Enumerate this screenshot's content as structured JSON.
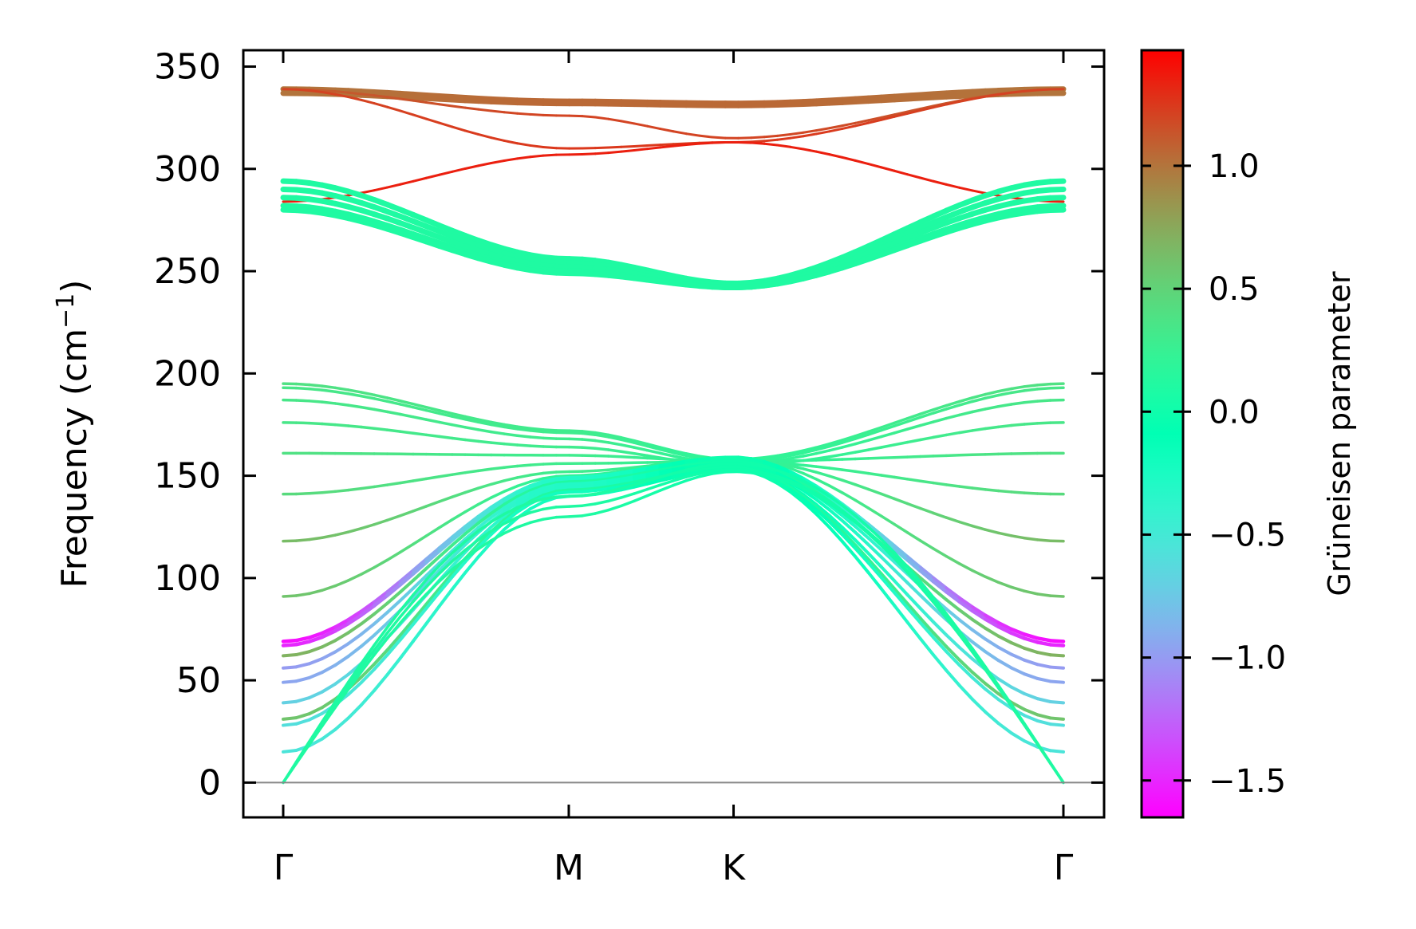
{
  "chart_data": {
    "type": "line",
    "title": "",
    "xlabel": "",
    "ylabel_main": "Frequency (cm",
    "ylabel_sup": "−1",
    "ylabel_close": ")",
    "ylim": [
      -17,
      358
    ],
    "yticks": [
      0,
      50,
      100,
      150,
      200,
      250,
      300,
      350
    ],
    "ytick_labels": [
      "0",
      "50",
      "100",
      "150",
      "200",
      "250",
      "300",
      "350"
    ],
    "k_path": [
      {
        "label": "Γ",
        "x": 0.0
      },
      {
        "label": "M",
        "x": 1.0
      },
      {
        "label": "K",
        "x": 1.577
      },
      {
        "label": "Γ",
        "x": 2.732
      }
    ],
    "zero_line": true,
    "colorbar": {
      "label": "Grüneisen parameter",
      "range": [
        -1.65,
        1.47
      ],
      "ticks": [
        1.0,
        0.5,
        0.0,
        -0.5,
        -1.0,
        -1.5
      ],
      "tick_labels": [
        "1.0",
        "0.5",
        "0.0",
        "−0.5",
        "−1.0",
        "−1.5"
      ],
      "colormap": "rainbow"
    },
    "series": [
      {
        "name": "optical-top-1",
        "freq": [
          339,
          333,
          332,
          339
        ],
        "gruneisen": [
          1.0,
          1.05,
          1.05,
          1.0
        ],
        "width": 7
      },
      {
        "name": "optical-top-2",
        "freq": [
          337,
          332,
          331,
          337
        ],
        "gruneisen": [
          1.0,
          1.05,
          1.05,
          1.0
        ],
        "width": 7
      },
      {
        "name": "optical-top-3",
        "freq": [
          339,
          326,
          315,
          339
        ],
        "gruneisen": [
          1.1,
          1.2,
          1.2,
          1.1
        ],
        "width": 3
      },
      {
        "name": "optical-top-4",
        "freq": [
          339,
          310,
          313,
          339
        ],
        "gruneisen": [
          1.2,
          1.25,
          1.25,
          1.2
        ],
        "width": 3
      },
      {
        "name": "optical-top-5",
        "freq": [
          284,
          307,
          313,
          284
        ],
        "gruneisen": [
          1.35,
          1.35,
          1.35,
          1.35
        ],
        "width": 3
      },
      {
        "name": "optical-mid-1",
        "freq": [
          294,
          256,
          244,
          294
        ],
        "gruneisen": [
          0.1,
          0.1,
          0.1,
          0.1
        ],
        "width": 7
      },
      {
        "name": "optical-mid-2",
        "freq": [
          290,
          254,
          243,
          290
        ],
        "gruneisen": [
          0.1,
          0.1,
          0.1,
          0.1
        ],
        "width": 7
      },
      {
        "name": "optical-mid-3",
        "freq": [
          286,
          252,
          243,
          286
        ],
        "gruneisen": [
          0.1,
          0.1,
          0.1,
          0.1
        ],
        "width": 7
      },
      {
        "name": "optical-mid-4",
        "freq": [
          282,
          250,
          242,
          282
        ],
        "gruneisen": [
          0.1,
          0.1,
          0.1,
          0.1
        ],
        "width": 7
      },
      {
        "name": "optical-mid-5",
        "freq": [
          280,
          249,
          242,
          280
        ],
        "gruneisen": [
          0.1,
          0.1,
          0.1,
          0.1
        ],
        "width": 7
      },
      {
        "name": "band-195",
        "freq": [
          195,
          172,
          158,
          195
        ],
        "gruneisen": [
          0.4,
          0.3,
          0.2,
          0.4
        ],
        "width": 3.5
      },
      {
        "name": "band-193",
        "freq": [
          193,
          171,
          157,
          193
        ],
        "gruneisen": [
          0.35,
          0.3,
          0.2,
          0.35
        ],
        "width": 3.5
      },
      {
        "name": "band-187",
        "freq": [
          187,
          168,
          156,
          187
        ],
        "gruneisen": [
          0.35,
          0.3,
          0.2,
          0.35
        ],
        "width": 3.5
      },
      {
        "name": "band-176",
        "freq": [
          176,
          164,
          155,
          176
        ],
        "gruneisen": [
          0.35,
          0.3,
          0.2,
          0.35
        ],
        "width": 3.5
      },
      {
        "name": "band-161",
        "freq": [
          161,
          160,
          157,
          161
        ],
        "gruneisen": [
          0.4,
          0.3,
          0.2,
          0.4
        ],
        "width": 3.5
      },
      {
        "name": "band-141",
        "freq": [
          141,
          156,
          157,
          141
        ],
        "gruneisen": [
          0.45,
          0.3,
          0.2,
          0.45
        ],
        "width": 3.5
      },
      {
        "name": "band-118",
        "freq": [
          118,
          152,
          158,
          118
        ],
        "gruneisen": [
          0.65,
          0.3,
          0.2,
          0.65
        ],
        "width": 3.5
      },
      {
        "name": "band-91",
        "freq": [
          91,
          150,
          159,
          91
        ],
        "gruneisen": [
          0.6,
          0.2,
          0.2,
          0.6
        ],
        "width": 3.5
      },
      {
        "name": "band-69",
        "freq": [
          69,
          149,
          159,
          69
        ],
        "gruneisen": [
          -1.6,
          -0.3,
          0.0,
          -1.6
        ],
        "width": 4.5
      },
      {
        "name": "band-67",
        "freq": [
          67,
          148,
          158,
          67
        ],
        "gruneisen": [
          -1.5,
          -0.3,
          0.0,
          -1.5
        ],
        "width": 4.5
      },
      {
        "name": "band-62",
        "freq": [
          62,
          147,
          157,
          62
        ],
        "gruneisen": [
          0.7,
          0.1,
          0.0,
          0.7
        ],
        "width": 4
      },
      {
        "name": "band-56",
        "freq": [
          56,
          146,
          156,
          56
        ],
        "gruneisen": [
          -1.0,
          -0.3,
          0.0,
          -1.0
        ],
        "width": 4
      },
      {
        "name": "band-49",
        "freq": [
          49,
          145,
          155,
          49
        ],
        "gruneisen": [
          -0.95,
          -0.3,
          0.0,
          -0.95
        ],
        "width": 4
      },
      {
        "name": "band-39",
        "freq": [
          39,
          144,
          154,
          39
        ],
        "gruneisen": [
          -0.7,
          -0.3,
          0.0,
          -0.7
        ],
        "width": 4
      },
      {
        "name": "band-31",
        "freq": [
          31,
          143,
          154,
          31
        ],
        "gruneisen": [
          0.6,
          0.1,
          0.0,
          0.6
        ],
        "width": 4
      },
      {
        "name": "band-28",
        "freq": [
          28,
          142,
          153,
          28
        ],
        "gruneisen": [
          -0.6,
          -0.2,
          0.0,
          -0.6
        ],
        "width": 4
      },
      {
        "name": "band-15",
        "freq": [
          15,
          140,
          153,
          15
        ],
        "gruneisen": [
          -0.55,
          -0.2,
          0.0,
          -0.55
        ],
        "width": 4
      },
      {
        "name": "acoustic-1",
        "freq": [
          0,
          140,
          156,
          0
        ],
        "gruneisen": [
          0.1,
          0.1,
          0.0,
          0.1
        ],
        "width": 3.5
      },
      {
        "name": "acoustic-2",
        "freq": [
          0,
          135,
          153,
          0
        ],
        "gruneisen": [
          0.1,
          0.1,
          0.0,
          0.1
        ],
        "width": 3.5
      },
      {
        "name": "acoustic-3",
        "freq": [
          0,
          130,
          152,
          0
        ],
        "gruneisen": [
          0.1,
          0.1,
          0.0,
          0.1
        ],
        "width": 3.5
      }
    ]
  }
}
